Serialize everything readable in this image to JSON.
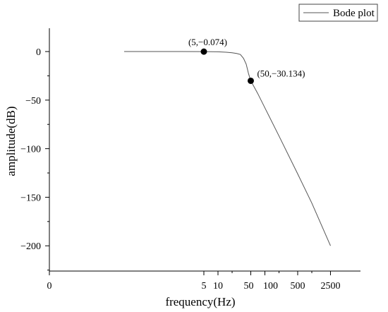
{
  "chart_data": {
    "type": "line",
    "xlabel": "frequency(Hz)",
    "ylabel": "amplitude(dB)",
    "x_scale": "log",
    "x_ticks": [
      "0",
      "5",
      "10",
      "50",
      "100",
      "500",
      "2500"
    ],
    "y_ticks": [
      0,
      -50,
      -100,
      -150,
      -200
    ],
    "ylim": [
      -226,
      24
    ],
    "grid": false,
    "legend_position": "top-right",
    "series": [
      {
        "name": "Bode plot",
        "x": [
          0.1,
          1,
          5,
          10,
          15,
          20,
          25,
          30,
          35,
          40,
          45,
          50,
          70,
          100,
          200,
          500,
          1000,
          2500
        ],
        "y": [
          0,
          0,
          -0.074,
          -0.3,
          -0.7,
          -1.2,
          -2,
          -3,
          -7,
          -13,
          -23,
          -30.134,
          -43,
          -58,
          -87,
          -126,
          -156,
          -200
        ]
      }
    ],
    "markers": [
      {
        "x": 5,
        "y": -0.074,
        "label": "(5,−0.074)"
      },
      {
        "x": 50,
        "y": -30.134,
        "label": "(50,−30.134)"
      }
    ]
  }
}
